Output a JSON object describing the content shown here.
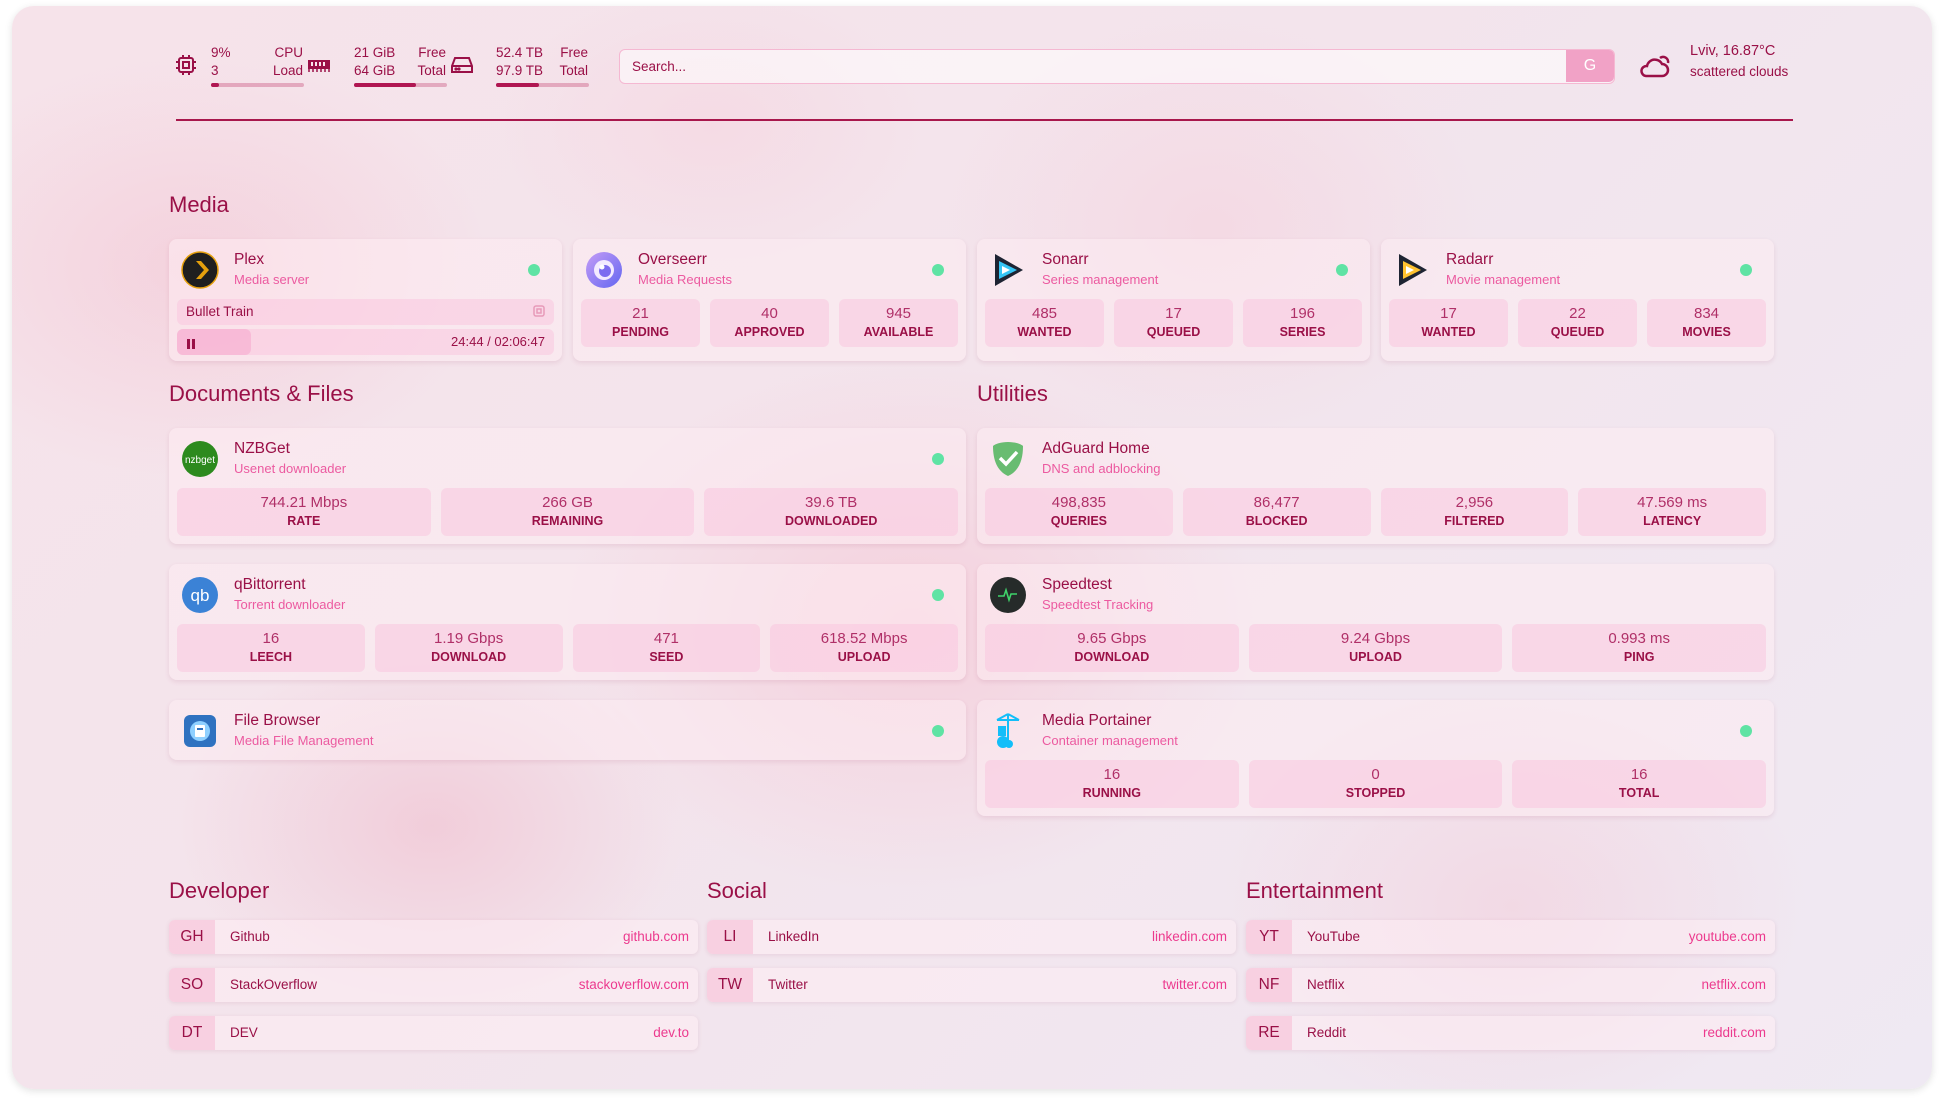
{
  "header": {
    "cpu": {
      "icon": "cpu-icon",
      "value": "9%",
      "sub": "3",
      "label1": "CPU",
      "label2": "Load",
      "usage_percent": 9
    },
    "memory": {
      "icon": "memory-icon",
      "value": "21 GiB",
      "sub": "64 GiB",
      "label1": "Free",
      "label2": "Total",
      "usage_percent": 67
    },
    "disk": {
      "icon": "disk-icon",
      "value": "52.4 TB",
      "sub": "97.9 TB",
      "label1": "Free",
      "label2": "Total",
      "usage_percent": 46
    },
    "search": {
      "placeholder": "Search...",
      "button": "G"
    },
    "weather": {
      "icon": "cloud-sun-icon",
      "location_temp": "Lviv, 16.87°C",
      "condition": "scattered clouds"
    }
  },
  "colors": {
    "primary": "#9a1047",
    "accent": "#ec5aa0",
    "status_ok": "#5fe3a4",
    "search_button": "#f1a2c6"
  },
  "sections": {
    "media": "Media",
    "documents": "Documents & Files",
    "utilities": "Utilities",
    "developer": "Developer",
    "social": "Social",
    "entertainment": "Entertainment"
  },
  "media": [
    {
      "name": "Plex",
      "desc": "Media server",
      "icon": "plex-icon",
      "status": "up",
      "now_playing": {
        "title": "Bullet Train",
        "time": "24:44 / 02:06:47",
        "progress": 0.195,
        "state": "paused"
      }
    },
    {
      "name": "Overseerr",
      "desc": "Media Requests",
      "icon": "overseerr-icon",
      "status": "up",
      "stats": [
        {
          "value": "21",
          "label": "PENDING"
        },
        {
          "value": "40",
          "label": "APPROVED"
        },
        {
          "value": "945",
          "label": "AVAILABLE"
        }
      ]
    },
    {
      "name": "Sonarr",
      "desc": "Series management",
      "icon": "sonarr-icon",
      "status": "up",
      "stats": [
        {
          "value": "485",
          "label": "WANTED"
        },
        {
          "value": "17",
          "label": "QUEUED"
        },
        {
          "value": "196",
          "label": "SERIES"
        }
      ]
    },
    {
      "name": "Radarr",
      "desc": "Movie management",
      "icon": "radarr-icon",
      "status": "up",
      "stats": [
        {
          "value": "17",
          "label": "WANTED"
        },
        {
          "value": "22",
          "label": "QUEUED"
        },
        {
          "value": "834",
          "label": "MOVIES"
        }
      ]
    }
  ],
  "documents": [
    {
      "name": "NZBGet",
      "desc": "Usenet downloader",
      "icon": "nzbget-icon",
      "status": "up",
      "stats": [
        {
          "value": "744.21 Mbps",
          "label": "RATE"
        },
        {
          "value": "266 GB",
          "label": "REMAINING"
        },
        {
          "value": "39.6 TB",
          "label": "DOWNLOADED"
        }
      ]
    },
    {
      "name": "qBittorrent",
      "desc": "Torrent downloader",
      "icon": "qbittorrent-icon",
      "status": "up",
      "stats": [
        {
          "value": "16",
          "label": "LEECH"
        },
        {
          "value": "1.19 Gbps",
          "label": "DOWNLOAD"
        },
        {
          "value": "471",
          "label": "SEED"
        },
        {
          "value": "618.52 Mbps",
          "label": "UPLOAD"
        }
      ]
    },
    {
      "name": "File Browser",
      "desc": "Media File Management",
      "icon": "filebrowser-icon",
      "status": "up"
    }
  ],
  "utilities": [
    {
      "name": "AdGuard Home",
      "desc": "DNS and adblocking",
      "icon": "adguard-icon",
      "stats": [
        {
          "value": "498,835",
          "label": "QUERIES"
        },
        {
          "value": "86,477",
          "label": "BLOCKED"
        },
        {
          "value": "2,956",
          "label": "FILTERED"
        },
        {
          "value": "47.569 ms",
          "label": "LATENCY"
        }
      ]
    },
    {
      "name": "Speedtest",
      "desc": "Speedtest Tracking",
      "icon": "speedtest-icon",
      "stats": [
        {
          "value": "9.65 Gbps",
          "label": "DOWNLOAD"
        },
        {
          "value": "9.24 Gbps",
          "label": "UPLOAD"
        },
        {
          "value": "0.993 ms",
          "label": "PING"
        }
      ]
    },
    {
      "name": "Media Portainer",
      "desc": "Container management",
      "icon": "portainer-icon",
      "status": "up",
      "stats": [
        {
          "value": "16",
          "label": "RUNNING"
        },
        {
          "value": "0",
          "label": "STOPPED"
        },
        {
          "value": "16",
          "label": "TOTAL"
        }
      ]
    }
  ],
  "bookmarks": {
    "developer": [
      {
        "abbr": "GH",
        "name": "Github",
        "url": "github.com"
      },
      {
        "abbr": "SO",
        "name": "StackOverflow",
        "url": "stackoverflow.com"
      },
      {
        "abbr": "DT",
        "name": "DEV",
        "url": "dev.to"
      }
    ],
    "social": [
      {
        "abbr": "LI",
        "name": "LinkedIn",
        "url": "linkedin.com"
      },
      {
        "abbr": "TW",
        "name": "Twitter",
        "url": "twitter.com"
      }
    ],
    "entertainment": [
      {
        "abbr": "YT",
        "name": "YouTube",
        "url": "youtube.com"
      },
      {
        "abbr": "NF",
        "name": "Netflix",
        "url": "netflix.com"
      },
      {
        "abbr": "RE",
        "name": "Reddit",
        "url": "reddit.com"
      }
    ]
  }
}
